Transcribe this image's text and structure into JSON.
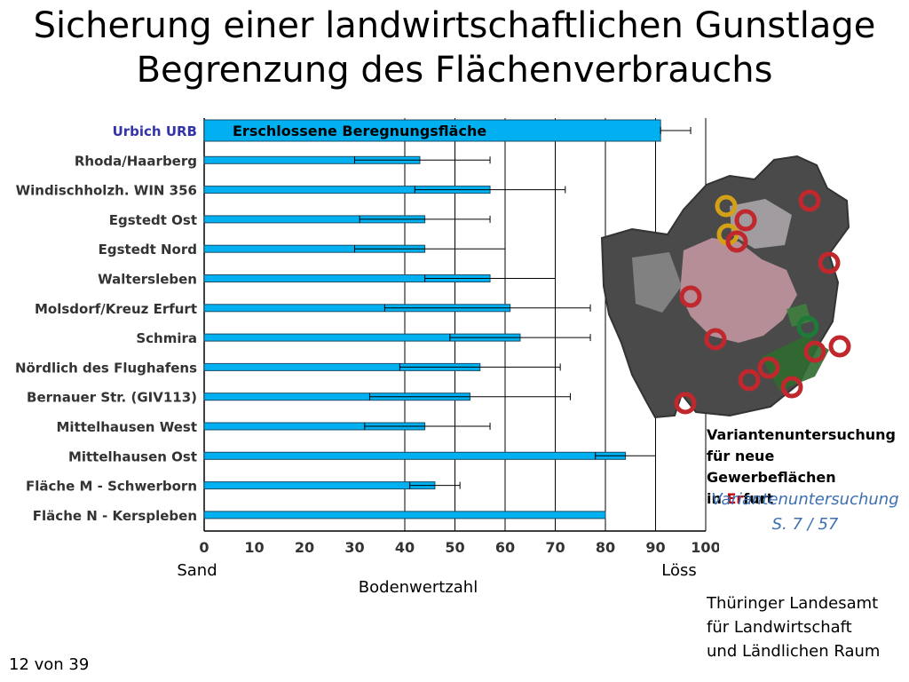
{
  "title_line1": "Sicherung einer landwirtschaftlichen Gunstlage",
  "title_line2": "Begrenzung des Flächenverbrauchs",
  "chart_data": {
    "type": "bar",
    "orientation": "horizontal",
    "categories": [
      "Urbich URB",
      "Rhoda/Haarberg",
      "Windischholzh. WIN 356",
      "Egstedt Ost",
      "Egstedt Nord",
      "Waltersleben",
      "Molsdorf/Kreuz Erfurt",
      "Schmira",
      "Nördlich des Flughafens",
      "Bernauer Str. (GIV113)",
      "Mittelhausen West",
      "Mittelhausen Ost",
      "Fläche M - Schwerborn",
      "Fläche N - Kerspleben"
    ],
    "values": [
      91,
      43,
      57,
      44,
      44,
      57,
      61,
      63,
      55,
      53,
      44,
      84,
      46,
      80
    ],
    "error_low": [
      91,
      30,
      42,
      31,
      30,
      44,
      36,
      49,
      39,
      33,
      32,
      78,
      41,
      80
    ],
    "error_high": [
      97,
      57,
      72,
      57,
      60,
      70,
      77,
      77,
      71,
      73,
      57,
      90,
      51,
      80
    ],
    "highlight_category": "Urbich URB",
    "bar_annotation": "Erschlossene Beregnungsfläche",
    "xlabel": "Bodenwertzahl",
    "x_left_word": "Sand",
    "x_right_word": "Löss",
    "xlim": [
      0,
      100
    ],
    "xticks": [
      0,
      10,
      20,
      30,
      40,
      50,
      60,
      70,
      80,
      90,
      100
    ],
    "grid": "vertical lines at 40, 50, 60, 70, 80, 90, 100",
    "bar_color": "#00b0f0",
    "highlight_color": "#3333aa"
  },
  "variant_note": {
    "line1": "Variantenuntersuchung",
    "line2": "für neue Gewerbeflächen",
    "line3_prefix": "in ",
    "line3_red": "Er",
    "line3_rest": "furt"
  },
  "reference": {
    "line1": "Variantenuntersuchung",
    "line2": "S. 7 / 57"
  },
  "institution": {
    "line1": "Thüringer Landesamt",
    "line2": "für Landwirtschaft",
    "line3": "und Ländlichen Raum"
  },
  "page_indicator": "12 von 39",
  "map_markers": [
    {
      "color": "#d4a017"
    },
    {
      "color": "#d4a017"
    },
    {
      "color": "#c0282d"
    },
    {
      "color": "#c0282d"
    },
    {
      "color": "#c0282d"
    },
    {
      "color": "#c0282d"
    },
    {
      "color": "#c0282d"
    },
    {
      "color": "#1f7a3a"
    },
    {
      "color": "#c0282d"
    },
    {
      "color": "#c0282d"
    },
    {
      "color": "#c0282d"
    },
    {
      "color": "#c0282d"
    },
    {
      "color": "#c0282d"
    },
    {
      "color": "#c0282d"
    },
    {
      "color": "#c0282d"
    }
  ]
}
